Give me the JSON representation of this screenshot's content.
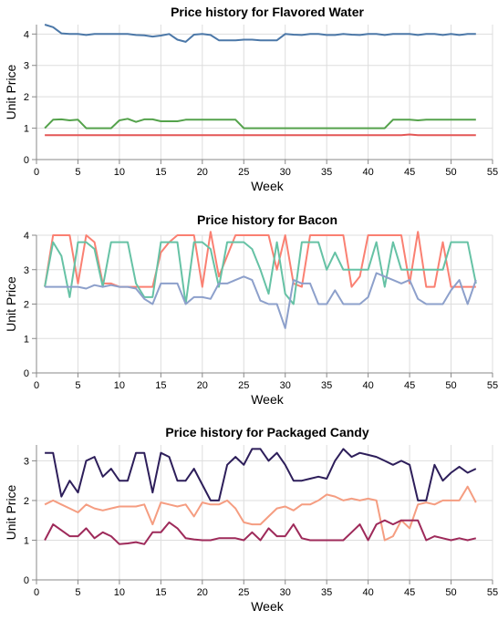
{
  "chart_data": [
    {
      "type": "line",
      "title": "Price history for Flavored Water",
      "xlabel": "Week",
      "ylabel": "Unit Price",
      "xlim": [
        0,
        55
      ],
      "ylim": [
        0,
        4.3
      ],
      "xticks": [
        0,
        5,
        10,
        15,
        20,
        25,
        30,
        35,
        40,
        45,
        50,
        55
      ],
      "yticks": [
        0,
        1,
        2,
        3,
        4
      ],
      "grid": true,
      "x": [
        1,
        2,
        3,
        4,
        5,
        6,
        7,
        8,
        9,
        10,
        11,
        12,
        13,
        14,
        15,
        16,
        17,
        18,
        19,
        20,
        21,
        22,
        23,
        24,
        25,
        26,
        27,
        28,
        29,
        30,
        31,
        32,
        33,
        34,
        35,
        36,
        37,
        38,
        39,
        40,
        41,
        42,
        43,
        44,
        45,
        46,
        47,
        48,
        49,
        50,
        51,
        52,
        53
      ],
      "series": [
        {
          "color": "#4c78a8",
          "values": [
            4.3,
            4.22,
            4.02,
            4.0,
            4.0,
            3.97,
            4.0,
            4.0,
            4.0,
            4.0,
            4.0,
            3.97,
            3.96,
            3.92,
            3.95,
            4.0,
            3.82,
            3.75,
            3.98,
            4.0,
            3.97,
            3.8,
            3.8,
            3.8,
            3.82,
            3.82,
            3.8,
            3.8,
            3.8,
            4.0,
            3.98,
            3.97,
            4.0,
            4.0,
            3.97,
            3.97,
            4.0,
            3.98,
            3.97,
            4.0,
            4.0,
            3.97,
            4.0,
            4.0,
            4.0,
            3.97,
            4.0,
            4.0,
            3.97,
            4.0,
            3.97,
            4.0,
            4.0
          ]
        },
        {
          "color": "#54a24b",
          "values": [
            1.0,
            1.27,
            1.28,
            1.25,
            1.27,
            1.0,
            1.0,
            1.0,
            1.0,
            1.25,
            1.3,
            1.2,
            1.28,
            1.28,
            1.22,
            1.22,
            1.22,
            1.27,
            1.27,
            1.27,
            1.27,
            1.27,
            1.27,
            1.27,
            1.0,
            1.0,
            1.0,
            1.0,
            1.0,
            1.0,
            1.0,
            1.0,
            1.0,
            1.0,
            1.0,
            1.0,
            1.0,
            1.0,
            1.0,
            1.0,
            1.0,
            1.0,
            1.27,
            1.27,
            1.27,
            1.25,
            1.27,
            1.27,
            1.27,
            1.27,
            1.27,
            1.27,
            1.27
          ]
        },
        {
          "color": "#e45756",
          "values": [
            0.78,
            0.78,
            0.78,
            0.78,
            0.78,
            0.78,
            0.78,
            0.78,
            0.78,
            0.78,
            0.78,
            0.78,
            0.78,
            0.78,
            0.78,
            0.78,
            0.78,
            0.78,
            0.78,
            0.78,
            0.78,
            0.78,
            0.78,
            0.78,
            0.78,
            0.78,
            0.78,
            0.78,
            0.78,
            0.78,
            0.78,
            0.78,
            0.78,
            0.78,
            0.78,
            0.78,
            0.78,
            0.78,
            0.78,
            0.78,
            0.78,
            0.78,
            0.78,
            0.78,
            0.8,
            0.78,
            0.78,
            0.78,
            0.78,
            0.78,
            0.78,
            0.78,
            0.78
          ]
        }
      ]
    },
    {
      "type": "line",
      "title": "Price history for Bacon",
      "xlabel": "Week",
      "ylabel": "Unit Price",
      "xlim": [
        0,
        55
      ],
      "ylim": [
        0,
        4
      ],
      "xticks": [
        0,
        5,
        10,
        15,
        20,
        25,
        30,
        35,
        40,
        45,
        50,
        55
      ],
      "yticks": [
        0,
        1,
        2,
        3,
        4
      ],
      "grid": true,
      "x": [
        1,
        2,
        3,
        4,
        5,
        6,
        7,
        8,
        9,
        10,
        11,
        12,
        13,
        14,
        15,
        16,
        17,
        18,
        19,
        20,
        21,
        22,
        23,
        24,
        25,
        26,
        27,
        28,
        29,
        30,
        31,
        32,
        33,
        34,
        35,
        36,
        37,
        38,
        39,
        40,
        41,
        42,
        43,
        44,
        45,
        46,
        47,
        48,
        49,
        50,
        51,
        52,
        53
      ],
      "series": [
        {
          "color": "#fa8072",
          "values": [
            2.5,
            4.0,
            4.0,
            4.0,
            2.6,
            4.0,
            3.8,
            2.6,
            2.6,
            2.5,
            2.5,
            2.5,
            2.5,
            2.5,
            3.5,
            3.8,
            4.0,
            4.0,
            4.0,
            2.5,
            4.1,
            2.8,
            3.4,
            4.0,
            4.0,
            4.0,
            4.0,
            4.0,
            3.0,
            4.0,
            2.6,
            2.5,
            4.0,
            4.0,
            4.0,
            4.0,
            4.0,
            2.5,
            2.8,
            4.0,
            4.0,
            4.0,
            4.0,
            4.0,
            2.6,
            4.1,
            2.5,
            2.5,
            3.8,
            2.5,
            2.5,
            2.5,
            2.5
          ]
        },
        {
          "color": "#66c2a5",
          "values": [
            2.5,
            3.8,
            3.4,
            2.2,
            3.8,
            3.8,
            3.6,
            2.5,
            3.8,
            3.8,
            3.8,
            2.6,
            2.2,
            2.2,
            3.8,
            3.8,
            3.8,
            2.0,
            3.8,
            3.8,
            3.6,
            2.5,
            3.8,
            3.8,
            3.8,
            3.6,
            3.0,
            2.3,
            3.8,
            2.3,
            2.0,
            3.8,
            3.8,
            3.8,
            3.0,
            3.5,
            3.0,
            3.0,
            3.0,
            3.0,
            3.8,
            2.5,
            3.8,
            3.0,
            3.0,
            3.0,
            3.0,
            3.0,
            3.0,
            3.8,
            3.8,
            3.8,
            2.6
          ]
        },
        {
          "color": "#8da0cb",
          "values": [
            2.5,
            2.5,
            2.5,
            2.5,
            2.5,
            2.45,
            2.55,
            2.5,
            2.55,
            2.5,
            2.5,
            2.45,
            2.15,
            2.0,
            2.6,
            2.6,
            2.6,
            2.0,
            2.2,
            2.2,
            2.15,
            2.6,
            2.6,
            2.7,
            2.8,
            2.7,
            2.1,
            2.0,
            2.0,
            1.3,
            2.7,
            2.6,
            2.6,
            2.0,
            2.0,
            2.4,
            2.0,
            2.0,
            2.0,
            2.2,
            2.9,
            2.8,
            2.7,
            2.6,
            2.7,
            2.15,
            2.0,
            2.0,
            2.0,
            2.4,
            2.7,
            2.0,
            2.7
          ]
        }
      ]
    },
    {
      "type": "line",
      "title": "Price history for Packaged Candy",
      "xlabel": "Week",
      "ylabel": "Unit Price",
      "xlim": [
        0,
        55
      ],
      "ylim": [
        0,
        3.4
      ],
      "xticks": [
        0,
        5,
        10,
        15,
        20,
        25,
        30,
        35,
        40,
        45,
        50,
        55
      ],
      "yticks": [
        0,
        1,
        2,
        3
      ],
      "grid": true,
      "x": [
        1,
        2,
        3,
        4,
        5,
        6,
        7,
        8,
        9,
        10,
        11,
        12,
        13,
        14,
        15,
        16,
        17,
        18,
        19,
        20,
        21,
        22,
        23,
        24,
        25,
        26,
        27,
        28,
        29,
        30,
        31,
        32,
        33,
        34,
        35,
        36,
        37,
        38,
        39,
        40,
        41,
        42,
        43,
        44,
        45,
        46,
        47,
        48,
        49,
        50,
        51,
        52,
        53
      ],
      "series": [
        {
          "color": "#2d1e5a",
          "values": [
            3.2,
            3.2,
            2.1,
            2.5,
            2.2,
            3.0,
            3.1,
            2.6,
            2.8,
            2.5,
            2.5,
            3.2,
            3.2,
            2.2,
            3.2,
            3.1,
            2.5,
            2.5,
            2.8,
            2.4,
            2.0,
            2.0,
            2.9,
            3.1,
            2.9,
            3.3,
            3.3,
            3.0,
            3.2,
            2.9,
            2.5,
            2.5,
            2.55,
            2.6,
            2.55,
            3.0,
            3.3,
            3.1,
            3.2,
            3.15,
            3.1,
            3.0,
            2.9,
            3.0,
            2.9,
            2.0,
            2.0,
            2.9,
            2.5,
            2.7,
            2.85,
            2.7,
            2.8
          ]
        },
        {
          "color": "#f59d81",
          "values": [
            1.9,
            2.0,
            1.9,
            1.8,
            1.7,
            1.9,
            1.8,
            1.75,
            1.8,
            1.85,
            1.85,
            1.85,
            1.9,
            1.4,
            1.95,
            1.9,
            1.85,
            1.9,
            1.6,
            1.95,
            1.9,
            1.9,
            2.0,
            1.8,
            1.45,
            1.4,
            1.4,
            1.6,
            1.8,
            1.85,
            1.75,
            1.9,
            1.9,
            2.0,
            2.15,
            2.1,
            2.0,
            2.05,
            2.0,
            2.05,
            2.0,
            1.0,
            1.1,
            1.5,
            1.3,
            1.9,
            1.95,
            1.9,
            2.0,
            2.0,
            2.0,
            2.35,
            1.95
          ]
        },
        {
          "color": "#9e2a5a",
          "values": [
            1.0,
            1.4,
            1.25,
            1.1,
            1.1,
            1.3,
            1.05,
            1.2,
            1.1,
            0.9,
            0.92,
            0.95,
            0.9,
            1.2,
            1.2,
            1.45,
            1.3,
            1.05,
            1.02,
            1.0,
            1.0,
            1.05,
            1.05,
            1.05,
            1.0,
            1.2,
            1.0,
            1.3,
            1.1,
            1.1,
            1.4,
            1.05,
            1.0,
            1.0,
            1.0,
            1.0,
            1.0,
            1.2,
            1.4,
            1.0,
            1.4,
            1.5,
            1.4,
            1.5,
            1.5,
            1.5,
            1.0,
            1.1,
            1.05,
            1.0,
            1.05,
            1.0,
            1.05
          ]
        }
      ]
    }
  ]
}
